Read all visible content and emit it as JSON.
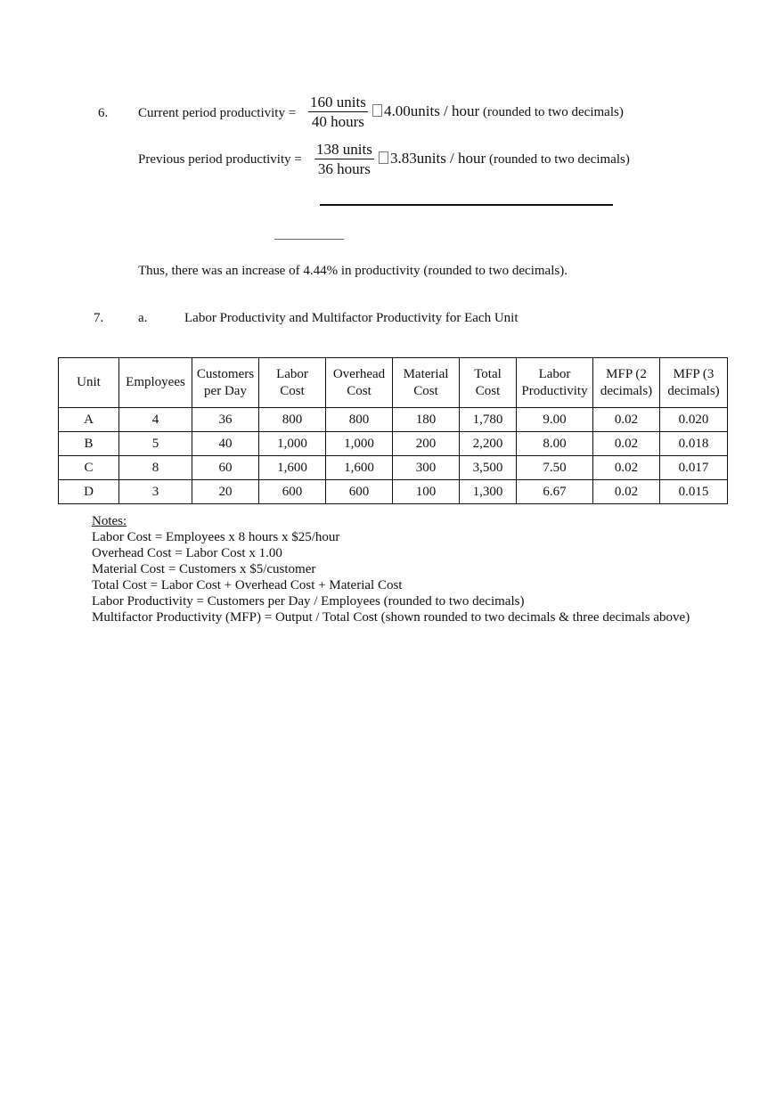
{
  "q6": {
    "number": "6.",
    "current_label": "Current period productivity =",
    "current_num": "160 units",
    "current_den": "40 hours",
    "current_result": "4.00",
    "current_unit": "units / hour",
    "current_note": "(rounded to two decimals)",
    "previous_label": "Previous period productivity =",
    "previous_num": "138 units",
    "previous_den": "36 hours",
    "previous_result": "3.83",
    "previous_unit": "units / hour",
    "previous_note": "(rounded to two decimals)",
    "conclusion": "Thus, there was an increase of 4.44% in productivity (rounded to two decimals)."
  },
  "q7": {
    "number": "7.",
    "part": "a.",
    "title": "Labor Productivity and Multifactor Productivity for Each Unit",
    "headers": [
      [
        "Unit"
      ],
      [
        "Employees"
      ],
      [
        "Customers",
        "per Day"
      ],
      [
        "Labor",
        "Cost"
      ],
      [
        "Overhead",
        "Cost"
      ],
      [
        "Material",
        "Cost"
      ],
      [
        "Total",
        "Cost"
      ],
      [
        "Labor",
        "Productivity"
      ],
      [
        "MFP (2",
        "decimals)"
      ],
      [
        "MFP (3",
        "decimals)"
      ]
    ],
    "rows": [
      [
        "A",
        "4",
        "36",
        "800",
        "800",
        "180",
        "1,780",
        "9.00",
        "0.02",
        "0.020"
      ],
      [
        "B",
        "5",
        "40",
        "1,000",
        "1,000",
        "200",
        "2,200",
        "8.00",
        "0.02",
        "0.018"
      ],
      [
        "C",
        "8",
        "60",
        "1,600",
        "1,600",
        "300",
        "3,500",
        "7.50",
        "0.02",
        "0.017"
      ],
      [
        "D",
        "3",
        "20",
        "600",
        "600",
        "100",
        "1,300",
        "6.67",
        "0.02",
        "0.015"
      ]
    ]
  },
  "notes": {
    "heading": "Notes:",
    "lines": [
      "Labor Cost = Employees x 8 hours x $25/hour",
      "Overhead Cost = Labor Cost x 1.00",
      "Material Cost = Customers x $5/customer",
      "Total Cost = Labor Cost + Overhead Cost + Material Cost",
      "Labor Productivity = Customers per Day / Employees (rounded to two decimals)",
      "Multifactor Productivity (MFP) = Output / Total Cost (shown rounded to two decimals & three decimals above)"
    ]
  }
}
